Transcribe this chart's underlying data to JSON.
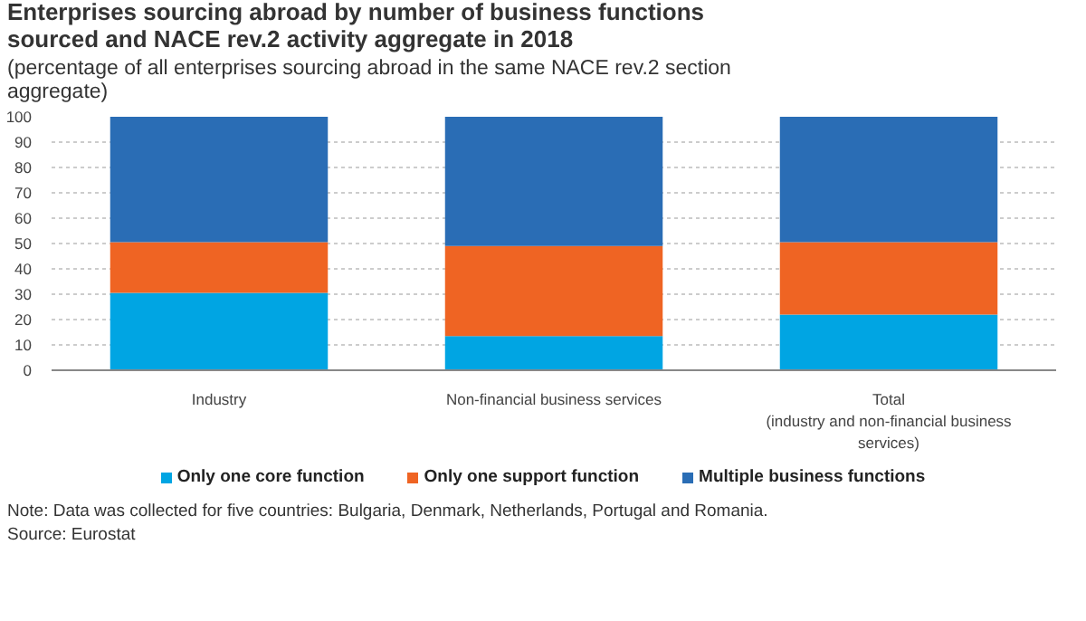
{
  "chart_data": {
    "type": "bar",
    "stacked": true,
    "title": "Enterprises sourcing abroad by number of business functions\nsourced and NACE rev.2 activity aggregate in 2018",
    "subtitle": "(percentage of all enterprises sourcing abroad in the same NACE rev.2 section\naggregate)",
    "categories": [
      "Industry",
      "Non-financial business services",
      "Total\n(industry and non-financial business\nservices)"
    ],
    "series": [
      {
        "name": "Only one core function",
        "color": "#00a5e3",
        "values": [
          30.5,
          13.5,
          22
        ]
      },
      {
        "name": "Only one support function",
        "color": "#ef6423",
        "values": [
          20,
          35.5,
          28.5
        ]
      },
      {
        "name": "Multiple business functions",
        "color": "#2a6db5",
        "values": [
          49.5,
          51,
          49.5
        ]
      }
    ],
    "ylim": [
      0,
      100
    ],
    "yticks": [
      0,
      10,
      20,
      30,
      40,
      50,
      60,
      70,
      80,
      90,
      100
    ],
    "grid": "y",
    "legend": "bottom",
    "annotations": [
      "Note: Data was collected for five countries: Bulgaria, Denmark, Netherlands, Portugal and Romania.",
      "Source: Eurostat"
    ]
  }
}
